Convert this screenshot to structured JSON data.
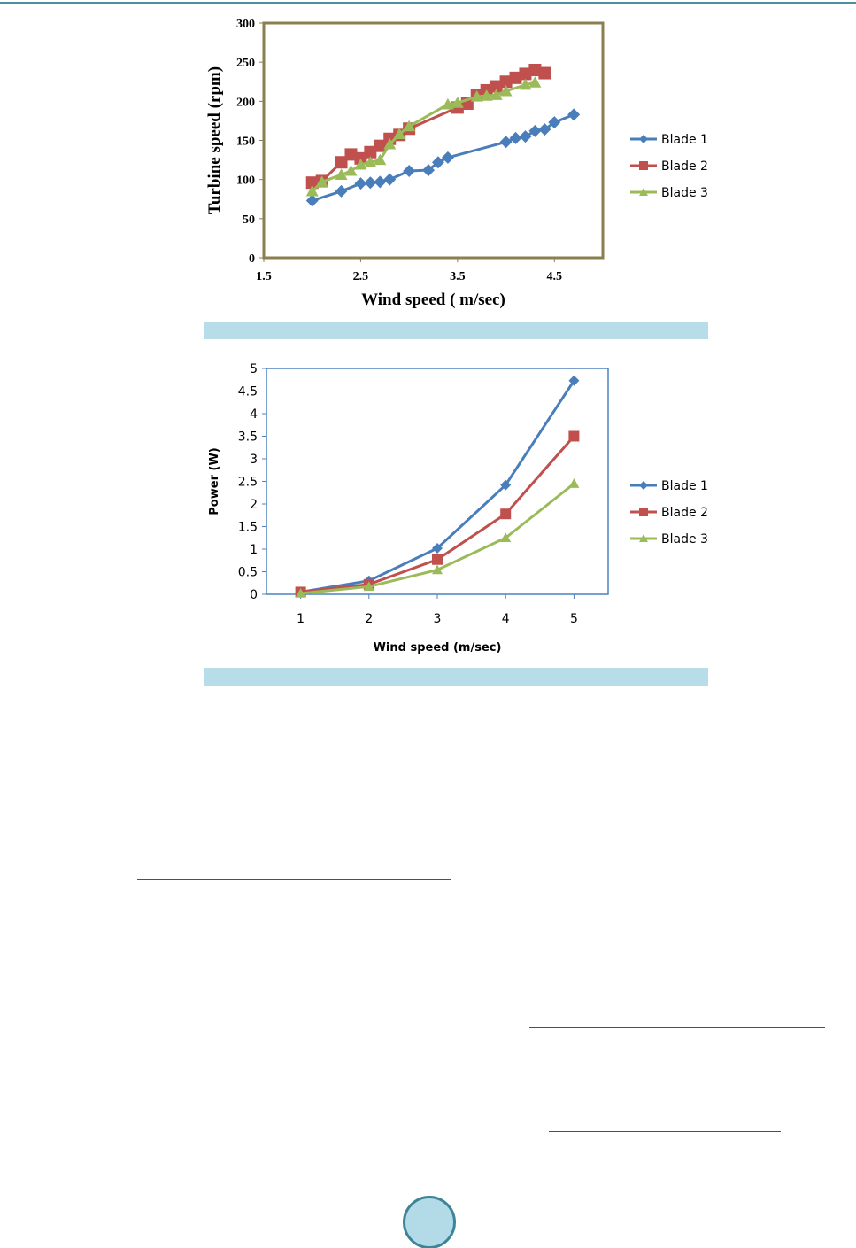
{
  "chart_data": [
    {
      "type": "line",
      "xlabel": "Wind speed ( m/sec)",
      "ylabel": "Turbine speed (rpm)",
      "xlim": [
        1.5,
        5.0
      ],
      "ylim": [
        0,
        300
      ],
      "xticks": [
        "1.5",
        "2.5",
        "3.5",
        "4.5"
      ],
      "xtick_values": [
        1.5,
        2.5,
        3.5,
        4.5
      ],
      "yticks": [
        "0",
        "50",
        "100",
        "150",
        "200",
        "250",
        "300"
      ],
      "ytick_values": [
        0,
        50,
        100,
        150,
        200,
        250,
        300
      ],
      "legend_position": "right",
      "series": [
        {
          "name": "Blade 1",
          "color": "#4a7ebb",
          "marker": "diamond",
          "x": [
            2.0,
            2.3,
            2.5,
            2.6,
            2.7,
            2.8,
            3.0,
            3.2,
            3.3,
            3.4,
            4.0,
            4.1,
            4.2,
            4.3,
            4.4,
            4.5,
            4.7
          ],
          "y": [
            73,
            85,
            95,
            96,
            97,
            100,
            111,
            112,
            122,
            128,
            148,
            153,
            155,
            162,
            164,
            173,
            183
          ]
        },
        {
          "name": "Blade 2",
          "color": "#c0504d",
          "marker": "square",
          "x": [
            2.0,
            2.1,
            2.3,
            2.4,
            2.5,
            2.6,
            2.7,
            2.8,
            2.9,
            3.0,
            3.5,
            3.6,
            3.7,
            3.8,
            3.9,
            4.0,
            4.1,
            4.2,
            4.3,
            4.4
          ],
          "y": [
            96,
            98,
            122,
            132,
            127,
            135,
            143,
            152,
            157,
            165,
            192,
            197,
            208,
            214,
            219,
            225,
            230,
            235,
            240,
            236
          ]
        },
        {
          "name": "Blade 3",
          "color": "#9bbb59",
          "marker": "triangle",
          "x": [
            2.0,
            2.1,
            2.3,
            2.4,
            2.5,
            2.6,
            2.7,
            2.8,
            2.9,
            3.0,
            3.4,
            3.5,
            3.7,
            3.8,
            3.9,
            4.0,
            4.2,
            4.3
          ],
          "y": [
            85,
            97,
            106,
            111,
            119,
            122,
            125,
            145,
            158,
            168,
            196,
            198,
            206,
            207,
            208,
            213,
            221,
            224
          ]
        }
      ]
    },
    {
      "type": "line",
      "xlabel": "Wind speed (m/sec)",
      "ylabel": "Power (W)",
      "xlim": [
        0.5,
        5.5
      ],
      "ylim": [
        0,
        5
      ],
      "xticks": [
        "1",
        "2",
        "3",
        "4",
        "5"
      ],
      "xtick_values": [
        1,
        2,
        3,
        4,
        5
      ],
      "yticks": [
        "0",
        "0.5",
        "1",
        "1.5",
        "2",
        "2.5",
        "3",
        "3.5",
        "4",
        "4.5",
        "5"
      ],
      "ytick_values": [
        0,
        0.5,
        1,
        1.5,
        2,
        2.5,
        3,
        3.5,
        4,
        4.5,
        5
      ],
      "legend_position": "right",
      "series": [
        {
          "name": "Blade 1",
          "color": "#4a7ebb",
          "marker": "diamond",
          "x": [
            1,
            2,
            3,
            4,
            5
          ],
          "y": [
            0.05,
            0.3,
            1.02,
            2.42,
            4.73
          ]
        },
        {
          "name": "Blade 2",
          "color": "#c0504d",
          "marker": "square",
          "x": [
            1,
            2,
            3,
            4,
            5
          ],
          "y": [
            0.05,
            0.22,
            0.77,
            1.78,
            3.5
          ]
        },
        {
          "name": "Blade 3",
          "color": "#9bbb59",
          "marker": "triangle",
          "x": [
            1,
            2,
            3,
            4,
            5
          ],
          "y": [
            0.02,
            0.17,
            0.54,
            1.25,
            2.45
          ]
        }
      ]
    }
  ]
}
